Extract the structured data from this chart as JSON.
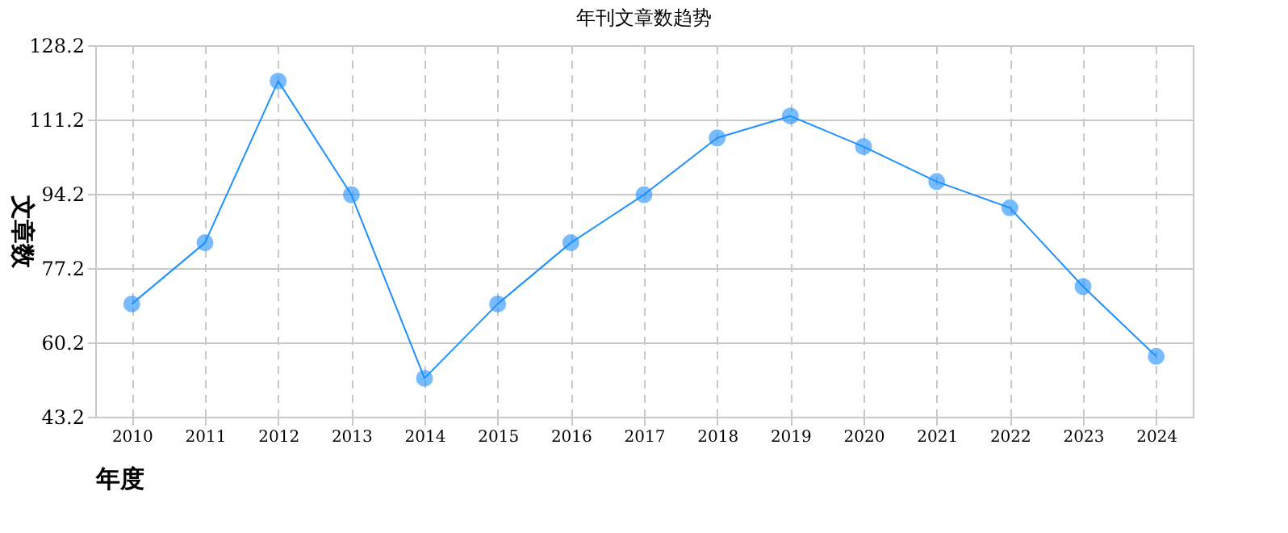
{
  "chart_data": {
    "type": "line",
    "title": "年刊文章数趋势",
    "xlabel": "年度",
    "ylabel": "文章数",
    "categories": [
      "2010",
      "2011",
      "2012",
      "2013",
      "2014",
      "2015",
      "2016",
      "2017",
      "2018",
      "2019",
      "2020",
      "2021",
      "2022",
      "2023",
      "2024"
    ],
    "series": [
      {
        "color": "#1e90ff",
        "values": [
          69,
          83,
          120,
          94,
          52,
          69,
          83,
          94,
          107,
          112,
          105,
          97,
          91,
          73,
          57
        ]
      }
    ],
    "ylim": [
      43.2,
      128.2
    ],
    "yticks": [
      43.2,
      60.2,
      77.2,
      94.2,
      111.2,
      128.2
    ],
    "grid": true,
    "marker": "circle",
    "line_style": "solid"
  }
}
